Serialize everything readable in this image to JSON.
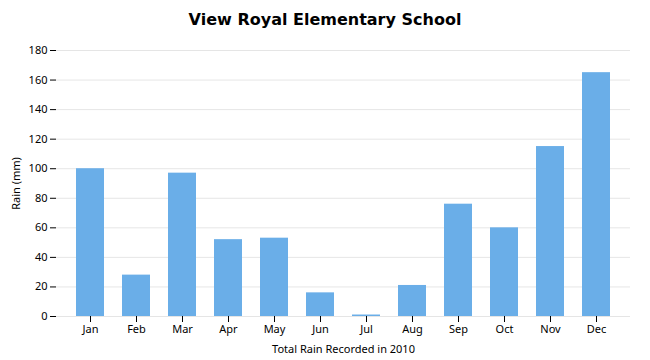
{
  "chart_data": {
    "type": "bar",
    "title": "View Royal Elementary School",
    "xlabel": "Total Rain Recorded in 2010",
    "ylabel": "Rain (mm)",
    "categories": [
      "Jan",
      "Feb",
      "Mar",
      "Apr",
      "May",
      "Jun",
      "Jul",
      "Aug",
      "Sep",
      "Oct",
      "Nov",
      "Dec"
    ],
    "values": [
      100,
      28,
      97,
      52,
      53,
      16,
      1,
      21,
      76,
      60,
      115,
      165
    ],
    "color": "#6aaee8",
    "ylim": [
      0,
      180
    ],
    "yticks": [
      0,
      20,
      40,
      60,
      80,
      100,
      120,
      140,
      160,
      180
    ],
    "grid": true
  }
}
